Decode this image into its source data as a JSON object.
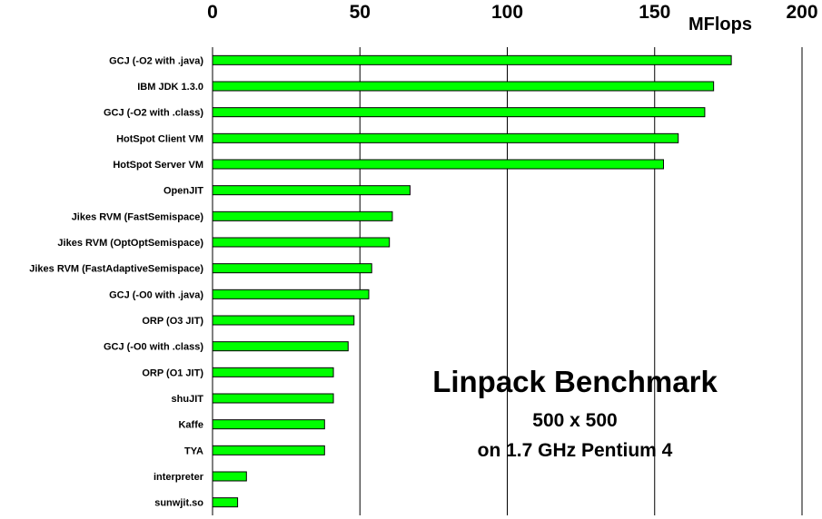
{
  "chart_data": {
    "type": "bar",
    "orientation": "horizontal",
    "title": "Linpack Benchmark",
    "subtitle_lines": [
      "500 x 500",
      "on 1.7 GHz Pentium 4"
    ],
    "xlabel": "MFlops",
    "xlim": [
      0,
      200
    ],
    "xticks": [
      "0",
      "50",
      "100",
      "150",
      "200"
    ],
    "grid": true,
    "bar_color": "#00ff00",
    "categories": [
      "GCJ (-O2 with .java)",
      "IBM JDK 1.3.0",
      "GCJ (-O2 with .class)",
      "HotSpot Client VM",
      "HotSpot Server VM",
      "OpenJIT",
      "Jikes RVM (FastSemispace)",
      "Jikes RVM (OptOptSemispace)",
      "Jikes RVM (FastAdaptiveSemispace)",
      "GCJ (-O0 with .java)",
      "ORP (O3 JIT)",
      "GCJ (-O0 with .class)",
      "ORP (O1 JIT)",
      "shuJIT",
      "Kaffe",
      "TYA",
      "interpreter",
      "sunwjit.so"
    ],
    "values": [
      176,
      170,
      167,
      158,
      153,
      67,
      61,
      60,
      54,
      53,
      48,
      46,
      41,
      41,
      38,
      38,
      11.5,
      8.5
    ]
  }
}
